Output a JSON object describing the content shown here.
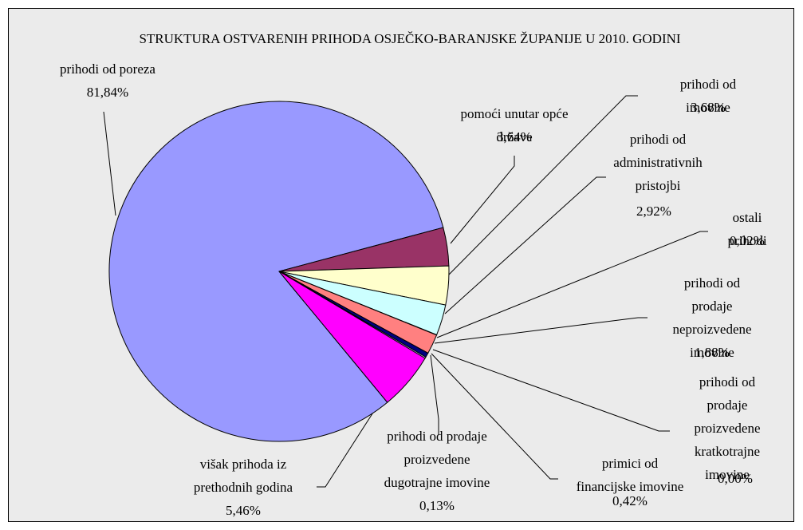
{
  "chart_data": {
    "type": "pie",
    "title": "STRUKTURA OSTVARENIH PRIHODA OSJEČKO-BARANJSKE ŽUPANIJE U 2010. GODINI",
    "categories": [
      "prihodi od poreza",
      "pomoći unutar opće\ndržave",
      "prihodi od imovine",
      "prihodi od\nadministrativnih\npristojbi",
      "ostali prihodi",
      "prihodi od prodaje\nneproizvedene\nimovine",
      "prihodi od prodaje\nproizvedene\nkratkotrajne\nimovine",
      "primici od\nfinancijske imovine",
      "prihodi od prodaje\nproizvedene\ndugotrajne imovine",
      "višak prihoda iz\nprethodnih godina"
    ],
    "values": [
      81.84,
      3.64,
      3.68,
      2.92,
      0.02,
      1.88,
      0.0,
      0.42,
      0.13,
      5.46
    ],
    "value_labels": [
      "81,84%",
      "3,64%",
      "3,68%",
      "2,92%",
      "0,02%",
      "1,88%",
      "0,00%",
      "0,42%",
      "0,13%",
      "5,46%"
    ],
    "colors": [
      "#9999ff",
      "#993366",
      "#ffffcc",
      "#ccffff",
      "#660066",
      "#ff8080",
      "#0066cc",
      "#000080",
      "#ccccff",
      "#ff00ff"
    ]
  }
}
